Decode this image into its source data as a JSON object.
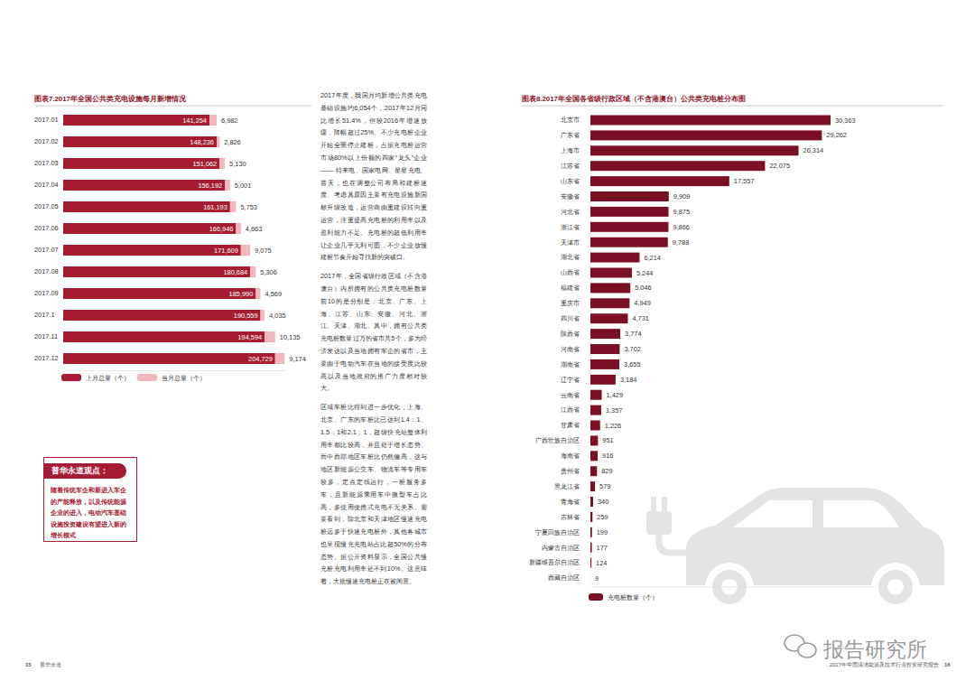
{
  "chart_data": [
    {
      "type": "bar",
      "title": "图表7.2017年全国公共类充电设施每月新增情况",
      "orientation": "horizontal",
      "stacked": true,
      "data_labels": true,
      "tick_labels": "y",
      "legend": "bottom",
      "categories": [
        "2017.01",
        "2017.02",
        "2017.03",
        "2017.04",
        "2017.05",
        "2017.06",
        "2017.07",
        "2017.08",
        "2017.09",
        "2017.1",
        "2017.11",
        "2017.12"
      ],
      "xlim": [
        0,
        214000
      ],
      "xticks": [],
      "series": [
        {
          "name": "上月总量（个）",
          "color": "#a81c33",
          "values": [
            141254,
            148236,
            151062,
            156192,
            161193,
            166946,
            171609,
            180684,
            185990,
            190559,
            194594,
            204729
          ],
          "value_labels": [
            "141,254",
            "148,236",
            "151,062",
            "156,192",
            "161,193",
            "166,946",
            "171,609",
            "180,684",
            "185,990",
            "190,559",
            "194,594",
            "204,729"
          ]
        },
        {
          "name": "当月总量（个）",
          "color": "#f2b6bd",
          "values": [
            6982,
            2826,
            5130,
            5001,
            5753,
            4663,
            9075,
            5306,
            4569,
            4035,
            10135,
            9174
          ],
          "value_labels": [
            "6,982",
            "2,826",
            "5,130",
            "5,001",
            "5,753",
            "4,663",
            "9,075",
            "5,306",
            "4,569",
            "4,035",
            "10,135",
            "9,174"
          ]
        }
      ]
    },
    {
      "type": "bar",
      "title": "图表8.2017年全国各省级行政区域（不含港澳台）公共类充电桩分布图",
      "orientation": "horizontal",
      "data_labels": true,
      "tick_labels": "y",
      "legend": "bottom",
      "categories": [
        "北京市",
        "广东省",
        "上海市",
        "江苏省",
        "山东省",
        "安徽省",
        "河北省",
        "浙江省",
        "天津市",
        "湖北省",
        "山西省",
        "福建省",
        "重庆市",
        "四川省",
        "陕西省",
        "河南省",
        "湖南省",
        "辽宁省",
        "云南省",
        "江西省",
        "甘肃省",
        "广西壮族自治区",
        "海南省",
        "贵州省",
        "黑龙江省",
        "青海省",
        "吉林省",
        "宁夏回族自治区",
        "内蒙古自治区",
        "新疆维吾尔自治区",
        "西藏自治区"
      ],
      "xlim": [
        0,
        36000
      ],
      "xticks": [],
      "series": [
        {
          "name": "充电桩数量（个）",
          "color": "#7b1024",
          "values": [
            30363,
            29262,
            26314,
            22075,
            17557,
            9909,
            9875,
            9866,
            9788,
            6214,
            5244,
            5046,
            4949,
            4731,
            3774,
            3702,
            3655,
            3184,
            1429,
            1357,
            1226,
            951,
            916,
            829,
            579,
            340,
            259,
            199,
            177,
            124,
            9
          ],
          "value_labels": [
            "30,363",
            "29,262",
            "26,314",
            "22,075",
            "17,557",
            "9,909",
            "9,875",
            "9,866",
            "9,788",
            "6,214",
            "5,244",
            "5,046",
            "4,949",
            "4,731",
            "3,774",
            "3,702",
            "3,655",
            "3,184",
            "1,429",
            "1,357",
            "1,226",
            "951",
            "916",
            "829",
            "579",
            "340",
            "259",
            "199",
            "177",
            "124",
            "9"
          ]
        }
      ]
    }
  ],
  "text": {
    "paragraphs": [
      "2017年度，我国月均新增公共类充电基础设施约6,054个，2017年12月同比增长51.4%，但较2016年增速放缓，降幅超过25%。不少充电桩企业开始全面停止建桩，占据充电桩运营市场80%以上份额的四家“龙头”企业—— 特来电、国家电网、星星充电、普天，也在调整公司布局和建桩速度。考虑其原因主要有充电设施新国标升级改造，运营商由重建设转向重运营，注重提高充电桩的利用率以及盈利能力不足。充电桩的超低利用率让企业几乎无利可图，不少企业放慢建桩节奏开始寻找新的突破口。",
      "2017年，全国省级行政区域（不含港澳台）内所拥有的公共类充电桩数量前10的是分别是：北京、广东、上海、江苏、山东、安徽、河北、浙江、天津、湖北。其中，拥有公共类充电桩数量过万的省市共5个，多为经济发达以及当地拥有车企的省市，主要由于电动汽车在当地的接受度比较高以及当地政府的推广力度相对较大。",
      "区域车桩比得到进一步优化，上海、北京、广东的车桩比已达到1.4：1、1.5：1和2.1：1，超级快充站整体利用率都比较高，并且处于增长态势。而中西部地区车桩比仍然偏高，这与地区新能源公交车、物流车等专用车较多，定点定线运行，一桩服务多车，且新能源乘用车中微型车占比高，多使用便携式充电不无关系。需要看到，除北京和天津地区慢速充电桩远多于快速充电桩外，其他各城市也呈现慢充充电站占比超50%的分布态势。据公开资料显示，全国公共慢充桩充电利用率还不到10%。这意味着，大批慢速充电桩正在被闲置。"
    ],
    "viewpoint": {
      "title": "普华永道观点：",
      "body": "随着传统车企和新进入车企的产能释放，以及传统能源企业的进入，电动汽车基础设施投资建设有望进入新的增长模式"
    },
    "footer": {
      "left_page": "15",
      "left_name": "普华永道",
      "right_title": "2017年中国清洁能源及技术行业投资研究报告",
      "right_page": "16"
    },
    "watermark": "报告研究所"
  }
}
